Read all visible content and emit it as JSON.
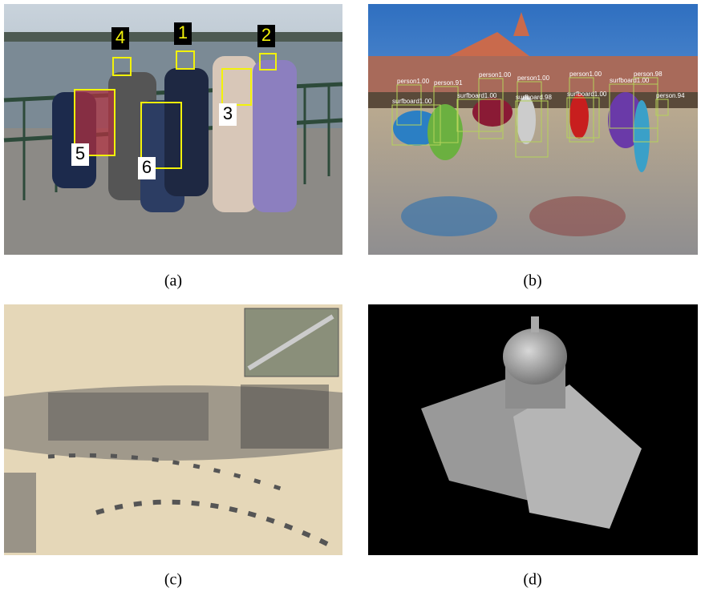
{
  "panels": [
    {
      "caption": "(a)",
      "labels": [
        "4",
        "1",
        "2",
        "3",
        "5",
        "6"
      ]
    },
    {
      "caption": "(b)",
      "labels": [
        "person1.00",
        "person.91",
        "person1.00",
        "person1.00",
        "person1.00",
        "person.98",
        "surfboard1.00",
        "surfboard1.00",
        "surfboard.98",
        "surfboard1.00",
        "surfboard1.00",
        "person.94"
      ]
    },
    {
      "caption": "(c)"
    },
    {
      "caption": "(d)"
    }
  ]
}
